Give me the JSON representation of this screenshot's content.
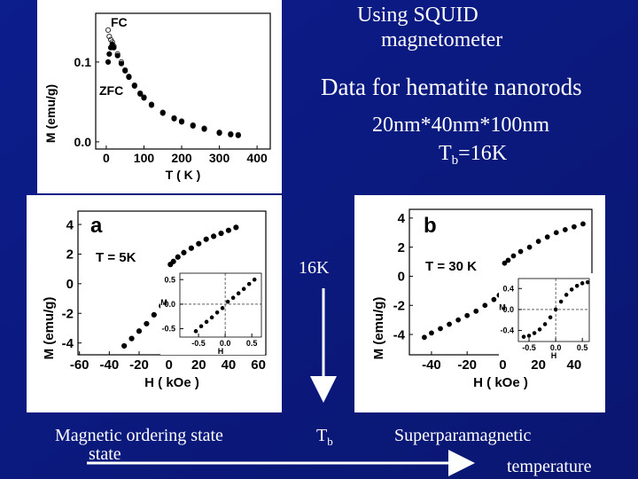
{
  "slide": {
    "title_lines": [
      "Using SQUID",
      "magnetometer"
    ],
    "subtitle": "Data for hematite nanorods",
    "dimensions": "20nm*40nm*100nm",
    "blocking_temp": {
      "symbol": "T",
      "subscript": "b",
      "value": "=16K"
    },
    "arrow_label": "16K",
    "left_label_lines": [
      "Magnetic ordering state",
      "state"
    ],
    "center_label": {
      "symbol": "T",
      "subscript": "b"
    },
    "right_label": "Superparamagnetic",
    "axis_label": "temperature"
  },
  "chart_data": [
    {
      "type": "scatter",
      "x_label": "T ( K )",
      "y_label": "M (emu/g)",
      "xlim": [
        -28,
        435
      ],
      "ylim": [
        -0.009,
        0.161
      ],
      "xticks": [
        0,
        100,
        200,
        300,
        400
      ],
      "yticks": [
        {
          "value": 0,
          "label": "0.0"
        },
        0.1
      ],
      "series": [
        {
          "name": "FC",
          "marker": "open",
          "color": "#333333",
          "x": [
            5,
            8,
            12,
            16,
            20,
            30,
            40,
            50,
            60,
            75,
            90,
            100,
            120,
            150,
            180,
            200,
            230,
            260,
            300,
            330,
            350
          ],
          "values": [
            0.14,
            0.132,
            0.128,
            0.125,
            0.12,
            0.11,
            0.1,
            0.09,
            0.082,
            0.071,
            0.061,
            0.056,
            0.047,
            0.037,
            0.03,
            0.026,
            0.021,
            0.017,
            0.012,
            0.01,
            0.009
          ]
        },
        {
          "name": "ZFC",
          "marker": "filled",
          "color": "#000000",
          "x": [
            5,
            8,
            12,
            16,
            20,
            30,
            40,
            50,
            60,
            75,
            90,
            100,
            120,
            150,
            180,
            200,
            230,
            260,
            300,
            330,
            350
          ],
          "values": [
            0.1,
            0.11,
            0.118,
            0.122,
            0.118,
            0.108,
            0.098,
            0.089,
            0.081,
            0.07,
            0.06,
            0.055,
            0.046,
            0.036,
            0.029,
            0.025,
            0.02,
            0.016,
            0.011,
            0.009,
            0.008
          ]
        }
      ]
    },
    {
      "type": "scatter",
      "panel_label": "a",
      "annotation": "T = 5K",
      "x_label": "H ( kOe )",
      "y_label": "M (emu/g)",
      "xlim": [
        -61,
        65
      ],
      "ylim": [
        -4.8,
        4.9
      ],
      "xticks": [
        -60,
        -40,
        -20,
        0,
        20,
        40,
        60
      ],
      "yticks": [
        -4,
        -2,
        0,
        2,
        4
      ],
      "series": [
        {
          "marker": "filled",
          "color": "#000000",
          "x": [
            -30,
            -25,
            -20,
            -15,
            -10,
            -5,
            -2,
            0,
            1,
            3,
            6,
            10,
            15,
            20,
            25,
            30,
            35,
            40,
            45
          ],
          "values": [
            -4.2,
            -3.7,
            -3.2,
            -2.7,
            -2.1,
            -1.5,
            -1.1,
            -0.5,
            1.3,
            1.5,
            1.8,
            2.1,
            2.4,
            2.7,
            3.0,
            3.2,
            3.4,
            3.6,
            3.8
          ]
        }
      ],
      "inset": {
        "x_label": "H",
        "y_label": "M",
        "xlim": [
          -0.85,
          0.68
        ],
        "ylim": [
          -0.67,
          0.63
        ],
        "xticks": [
          -0.5,
          {
            "value": 0,
            "label": "0.0"
          },
          0.5
        ],
        "yticks": [
          0.5,
          {
            "value": 0,
            "label": "0.0"
          },
          -0.5
        ],
        "series": [
          {
            "marker": "filled",
            "color": "#000000",
            "x": [
              -0.55,
              -0.45,
              -0.35,
              -0.25,
              -0.15,
              -0.05,
              0.05,
              0.15,
              0.25,
              0.35,
              0.45,
              0.55
            ],
            "values": [
              -0.55,
              -0.45,
              -0.36,
              -0.27,
              -0.17,
              -0.08,
              0.05,
              0.13,
              0.22,
              0.31,
              0.41,
              0.5
            ]
          }
        ]
      }
    },
    {
      "type": "scatter",
      "panel_label": "b",
      "annotation": "T = 30 K",
      "x_label": "H ( kOe )",
      "y_label": "M (emu/g)",
      "xlim": [
        -52.4,
        50
      ],
      "ylim": [
        -5.4,
        4.6
      ],
      "xticks": [
        -40,
        -20,
        0,
        20,
        40
      ],
      "yticks": [
        -4,
        -2,
        0,
        2,
        4
      ],
      "series": [
        {
          "marker": "filled",
          "color": "#000000",
          "x": [
            -44,
            -40,
            -35,
            -30,
            -25,
            -20,
            -15,
            -10,
            -5,
            -2,
            0,
            1,
            3,
            6,
            10,
            15,
            20,
            25,
            30,
            35,
            40,
            45
          ],
          "values": [
            -4.2,
            -3.9,
            -3.6,
            -3.3,
            -3.0,
            -2.7,
            -2.4,
            -2.0,
            -1.6,
            -1.3,
            -0.6,
            0.9,
            1.1,
            1.4,
            1.7,
            2.0,
            2.4,
            2.7,
            3.0,
            3.2,
            3.4,
            3.6
          ]
        }
      ],
      "inset": {
        "x_label": "H",
        "y_label": "M",
        "xlim": [
          -0.7,
          0.63
        ],
        "ylim": [
          -0.61,
          0.59
        ],
        "xticks": [
          -0.5,
          {
            "value": 0,
            "label": "0.0"
          },
          0.5
        ],
        "yticks": [
          0.4,
          {
            "value": 0,
            "label": "0.0"
          },
          -0.4
        ],
        "series": [
          {
            "marker": "filled",
            "color": "#000000",
            "x": [
              -0.6,
              -0.5,
              -0.4,
              -0.3,
              -0.2,
              -0.1,
              0,
              0.1,
              0.2,
              0.3,
              0.4,
              0.5,
              0.6
            ],
            "values": [
              -0.52,
              -0.5,
              -0.45,
              -0.38,
              -0.28,
              -0.15,
              0,
              0.15,
              0.28,
              0.38,
              0.45,
              0.5,
              0.52
            ]
          }
        ]
      }
    }
  ]
}
